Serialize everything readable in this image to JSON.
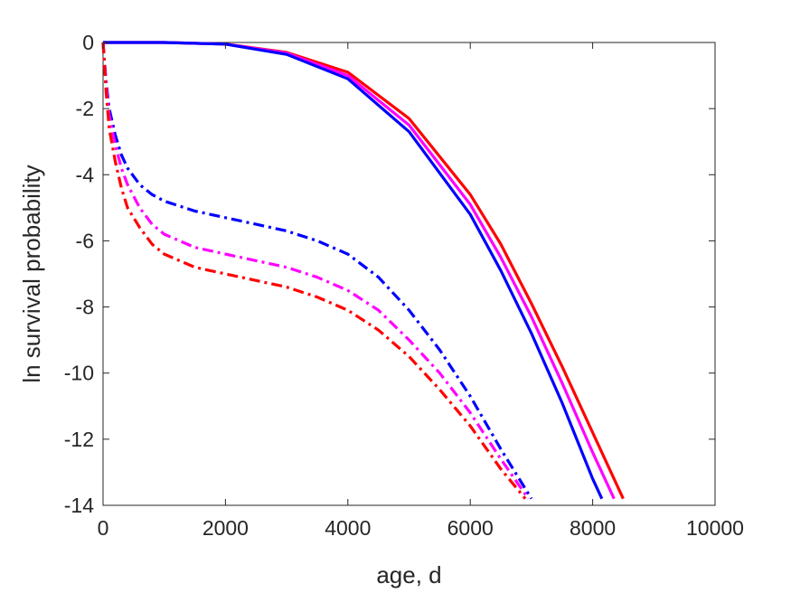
{
  "chart_data": {
    "type": "line",
    "xlabel": "age, d",
    "ylabel": "ln survival probability",
    "xlim": [
      0,
      10000
    ],
    "ylim": [
      -14,
      0
    ],
    "xticks": [
      0,
      2000,
      4000,
      6000,
      8000,
      10000
    ],
    "xtick_labels": [
      "0",
      "2000",
      "4000",
      "6000",
      "8000",
      "10000"
    ],
    "yticks": [
      0,
      -2,
      -4,
      -6,
      -8,
      -10,
      -12,
      -14
    ],
    "ytick_labels": [
      "0",
      "-2",
      "-4",
      "-6",
      "-8",
      "-10",
      "-12",
      "-14"
    ],
    "grid": false,
    "series": [
      {
        "color": "#ff0000",
        "style": "solid",
        "x": [
          0,
          1000,
          2000,
          3000,
          4000,
          5000,
          6000,
          6500,
          7000,
          7500,
          8000,
          8500
        ],
        "y": [
          0,
          0,
          -0.05,
          -0.3,
          -0.9,
          -2.3,
          -4.6,
          -6.1,
          -7.9,
          -9.8,
          -11.8,
          -13.8
        ]
      },
      {
        "color": "#ff00ff",
        "style": "solid",
        "x": [
          0,
          1000,
          2000,
          3000,
          4000,
          5000,
          6000,
          6500,
          7000,
          7500,
          8000,
          8350
        ],
        "y": [
          0,
          0,
          -0.05,
          -0.32,
          -1.0,
          -2.5,
          -4.9,
          -6.5,
          -8.3,
          -10.3,
          -12.4,
          -13.8
        ]
      },
      {
        "color": "#0000ff",
        "style": "solid",
        "x": [
          0,
          1000,
          2000,
          3000,
          4000,
          5000,
          6000,
          6500,
          7000,
          7500,
          8000,
          8150
        ],
        "y": [
          0,
          0,
          -0.05,
          -0.36,
          -1.1,
          -2.7,
          -5.2,
          -6.9,
          -8.8,
          -10.9,
          -13.2,
          -13.8
        ]
      },
      {
        "color": "#0000ff",
        "style": "dashdot",
        "x": [
          0,
          50,
          100,
          200,
          300,
          400,
          600,
          800,
          1000,
          1500,
          2000,
          2500,
          3000,
          3500,
          4000,
          4500,
          5000,
          5500,
          6000,
          6500,
          7000
        ],
        "y": [
          0,
          -1.2,
          -2.0,
          -2.8,
          -3.4,
          -3.8,
          -4.3,
          -4.6,
          -4.8,
          -5.1,
          -5.3,
          -5.5,
          -5.7,
          -6.0,
          -6.4,
          -7.1,
          -8.1,
          -9.3,
          -10.7,
          -12.3,
          -13.8
        ]
      },
      {
        "color": "#ff00ff",
        "style": "dashdot",
        "x": [
          0,
          50,
          100,
          200,
          300,
          400,
          600,
          800,
          1000,
          1500,
          2000,
          2500,
          3000,
          3500,
          4000,
          4500,
          5000,
          5500,
          6000,
          6500,
          6950
        ],
        "y": [
          0,
          -1.3,
          -2.2,
          -3.1,
          -3.8,
          -4.3,
          -5.0,
          -5.5,
          -5.8,
          -6.2,
          -6.4,
          -6.6,
          -6.8,
          -7.1,
          -7.5,
          -8.1,
          -9.0,
          -10.0,
          -11.2,
          -12.6,
          -13.8
        ]
      },
      {
        "color": "#ff0000",
        "style": "dashdot",
        "x": [
          0,
          50,
          100,
          200,
          300,
          400,
          600,
          800,
          1000,
          1500,
          2000,
          2500,
          3000,
          3500,
          4000,
          4500,
          5000,
          5500,
          6000,
          6500,
          6900
        ],
        "y": [
          0,
          -1.5,
          -2.6,
          -3.6,
          -4.4,
          -5.0,
          -5.6,
          -6.1,
          -6.4,
          -6.8,
          -7.0,
          -7.2,
          -7.4,
          -7.7,
          -8.1,
          -8.7,
          -9.5,
          -10.5,
          -11.6,
          -12.9,
          -13.8
        ]
      }
    ]
  }
}
